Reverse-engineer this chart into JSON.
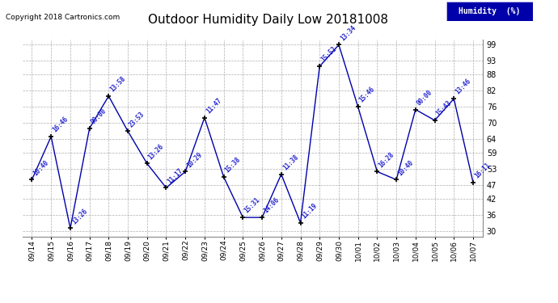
{
  "title": "Outdoor Humidity Daily Low 20181008",
  "copyright": "Copyright 2018 Cartronics.com",
  "legend_label": "Humidity  (%)",
  "ylim": [
    28,
    101
  ],
  "yticks": [
    30,
    36,
    42,
    47,
    53,
    59,
    64,
    70,
    76,
    82,
    88,
    93,
    99
  ],
  "dates": [
    "09/14",
    "09/15",
    "09/16",
    "09/17",
    "09/18",
    "09/19",
    "09/20",
    "09/21",
    "09/22",
    "09/23",
    "09/24",
    "09/25",
    "09/26",
    "09/27",
    "09/28",
    "09/29",
    "09/30",
    "10/01",
    "10/02",
    "10/03",
    "10/04",
    "10/05",
    "10/06",
    "10/07"
  ],
  "values": [
    49,
    65,
    31,
    68,
    80,
    67,
    55,
    46,
    52,
    72,
    50,
    35,
    35,
    51,
    33,
    91,
    99,
    76,
    52,
    49,
    75,
    71,
    79,
    48
  ],
  "labels": [
    "10:40",
    "16:46",
    "13:26",
    "00:00",
    "13:58",
    "23:53",
    "13:26",
    "11:17",
    "10:29",
    "11:47",
    "15:38",
    "15:31",
    "14:06",
    "11:38",
    "11:19",
    "15:52",
    "13:34",
    "15:46",
    "16:28",
    "10:40",
    "00:00",
    "15:43",
    "13:46",
    "16:11"
  ],
  "line_color": "#0000aa",
  "marker_color": "#000000",
  "label_color": "#2222cc",
  "bg_color": "#ffffff",
  "grid_color": "#999999",
  "title_color": "#000000",
  "copyright_color": "#000000",
  "legend_bg": "#0000aa",
  "legend_fg": "#ffffff"
}
